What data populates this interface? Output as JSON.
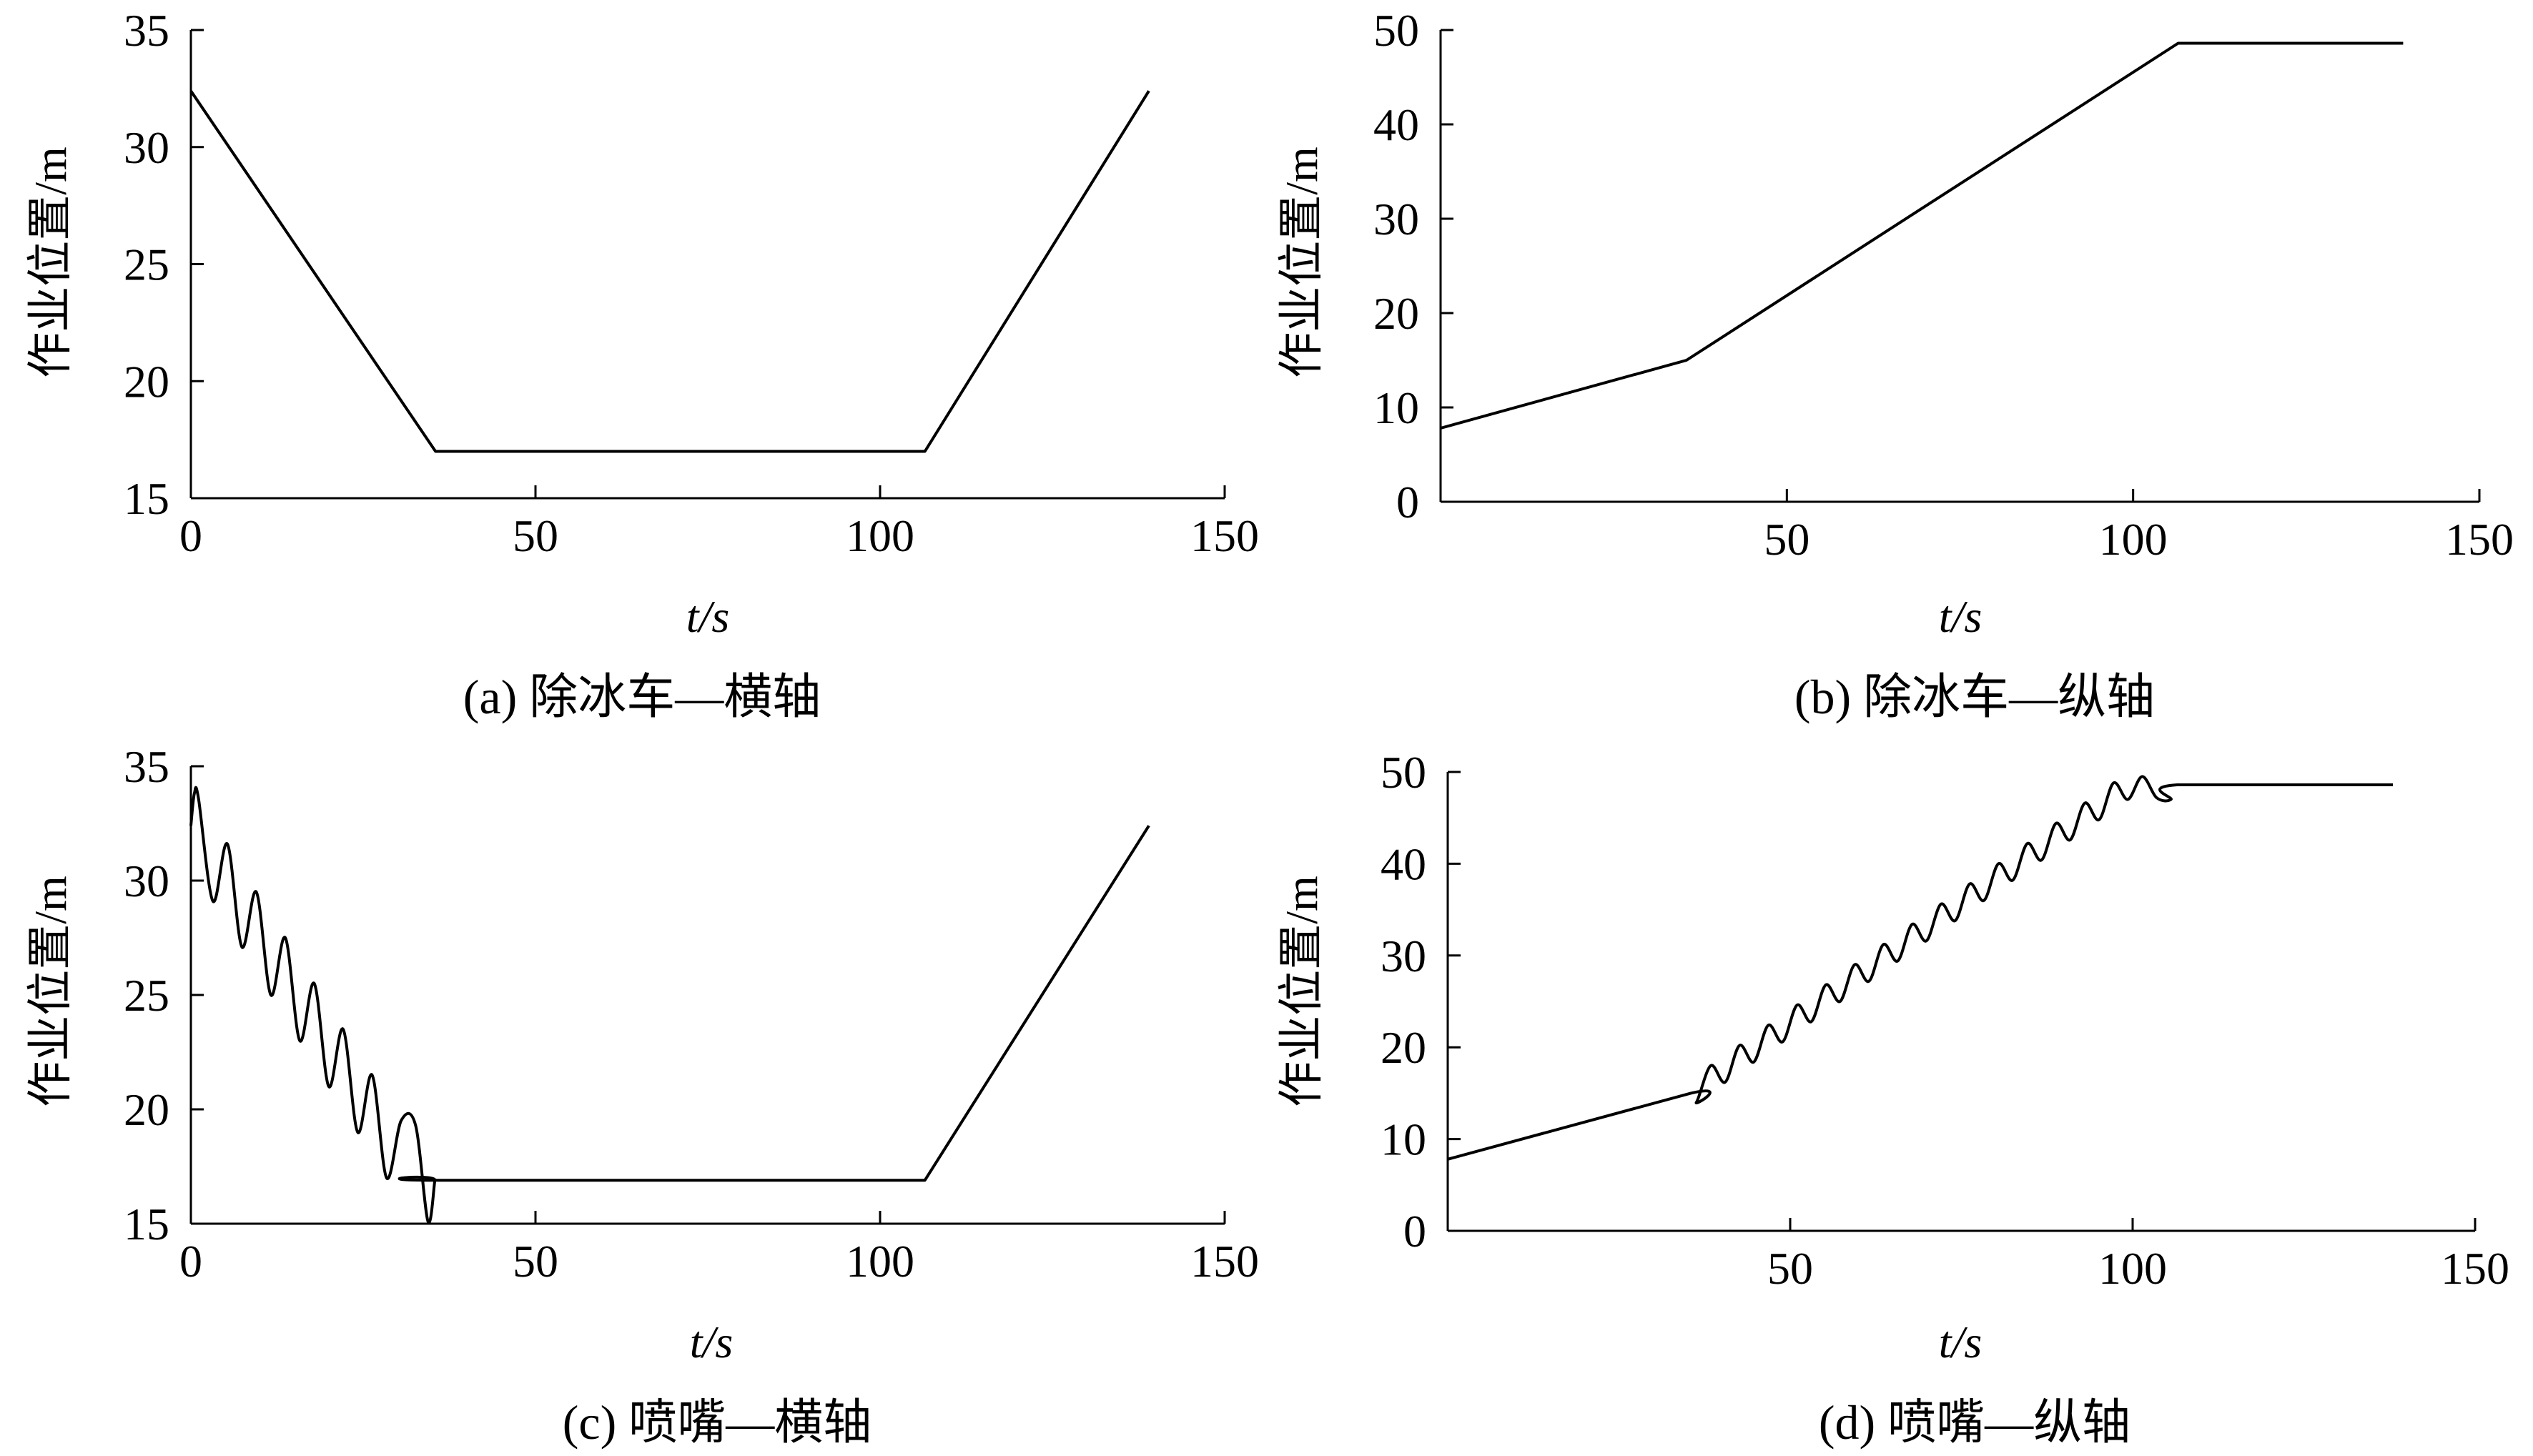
{
  "chart_data": [
    {
      "id": "a",
      "type": "line",
      "caption": "(a) 除冰车—横轴",
      "xlabel": "t/s",
      "ylabel": "作业位置/m",
      "xlim": [
        0,
        150
      ],
      "ylim": [
        15,
        35
      ],
      "xticks": [
        0,
        50,
        100,
        150
      ],
      "yticks": [
        15,
        20,
        25,
        30,
        35
      ],
      "xtick_labels": [
        "0",
        "50",
        "100",
        "150"
      ],
      "ytick_labels": [
        "15",
        "20",
        "25",
        "30",
        "35"
      ],
      "grid": false,
      "series": [
        {
          "x": [
            0,
            35.5,
            106.5,
            139
          ],
          "y": [
            32.4,
            17.0,
            17.0,
            32.4
          ]
        }
      ]
    },
    {
      "id": "b",
      "type": "line",
      "caption": "(b) 除冰车—纵轴",
      "xlabel": "t/s",
      "ylabel": "作业位置/m",
      "xlim": [
        0,
        150
      ],
      "ylim": [
        0,
        50
      ],
      "xticks": [
        50,
        100,
        150
      ],
      "yticks": [
        0,
        10,
        20,
        30,
        40,
        50
      ],
      "xtick_labels": [
        "50",
        "100",
        "150"
      ],
      "ytick_labels": [
        "0",
        "10",
        "20",
        "30",
        "40",
        "50"
      ],
      "grid": false,
      "series": [
        {
          "x": [
            0,
            35.5,
            106.5,
            139
          ],
          "y": [
            7.8,
            15.0,
            48.6,
            48.6
          ]
        }
      ]
    },
    {
      "id": "c",
      "type": "line",
      "caption": "(c) 喷嘴—横轴",
      "xlabel": "t/s",
      "ylabel": "作业位置/m",
      "xlim": [
        0,
        150
      ],
      "ylim": [
        15,
        35
      ],
      "xticks": [
        0,
        50,
        100,
        150
      ],
      "yticks": [
        15,
        20,
        25,
        30,
        35
      ],
      "xtick_labels": [
        "0",
        "50",
        "100",
        "150"
      ],
      "ytick_labels": [
        "15",
        "20",
        "25",
        "30",
        "35"
      ],
      "grid": false,
      "series": [
        {
          "x": [
            0,
            0.5,
            1.1,
            3.2,
            5.3,
            7.4,
            9.5,
            11.6,
            13.7,
            15.8,
            17.9,
            20.0,
            22.1,
            24.2,
            26.3,
            28.4,
            30.5,
            32.6,
            34.4,
            35.4,
            35.5,
            106.5,
            139
          ],
          "y": [
            32.4,
            33.8,
            33.6,
            29.1,
            31.6,
            27.1,
            29.5,
            25.0,
            27.5,
            23.0,
            25.5,
            21.0,
            23.5,
            19.0,
            21.5,
            17.0,
            19.5,
            19.3,
            15.1,
            16.9,
            16.9,
            16.9,
            32.4
          ]
        }
      ]
    },
    {
      "id": "d",
      "type": "line",
      "caption": "(d) 喷嘴—纵轴",
      "xlabel": "t/s",
      "ylabel": "作业位置/m",
      "xlim": [
        0,
        150
      ],
      "ylim": [
        0,
        50
      ],
      "xticks": [
        50,
        100,
        150
      ],
      "yticks": [
        0,
        10,
        20,
        30,
        40,
        50
      ],
      "xtick_labels": [
        "50",
        "100",
        "150"
      ],
      "ytick_labels": [
        "0",
        "10",
        "20",
        "30",
        "40",
        "50"
      ],
      "grid": false,
      "series": [
        {
          "x": [
            0,
            35.5,
            36.3,
            38.4,
            40.5,
            42.6,
            44.7,
            46.8,
            48.9,
            51.0,
            53.1,
            55.2,
            57.3,
            59.4,
            61.5,
            63.6,
            65.7,
            67.8,
            69.9,
            72.0,
            74.1,
            76.2,
            78.3,
            80.4,
            82.5,
            84.6,
            86.7,
            88.8,
            90.9,
            93.0,
            95.1,
            97.2,
            99.3,
            101.4,
            103.5,
            105.6,
            106.5,
            138
          ],
          "y": [
            7.8,
            15.0,
            14.0,
            18.0,
            16.2,
            20.2,
            18.4,
            22.4,
            20.6,
            24.6,
            22.8,
            26.8,
            25.0,
            29.0,
            27.2,
            31.2,
            29.4,
            33.4,
            31.6,
            35.6,
            33.8,
            37.8,
            36.0,
            40.0,
            38.2,
            42.2,
            40.4,
            44.4,
            42.6,
            46.6,
            44.8,
            48.8,
            47.0,
            49.5,
            47.2,
            47.0,
            48.6,
            48.6
          ]
        }
      ]
    }
  ]
}
